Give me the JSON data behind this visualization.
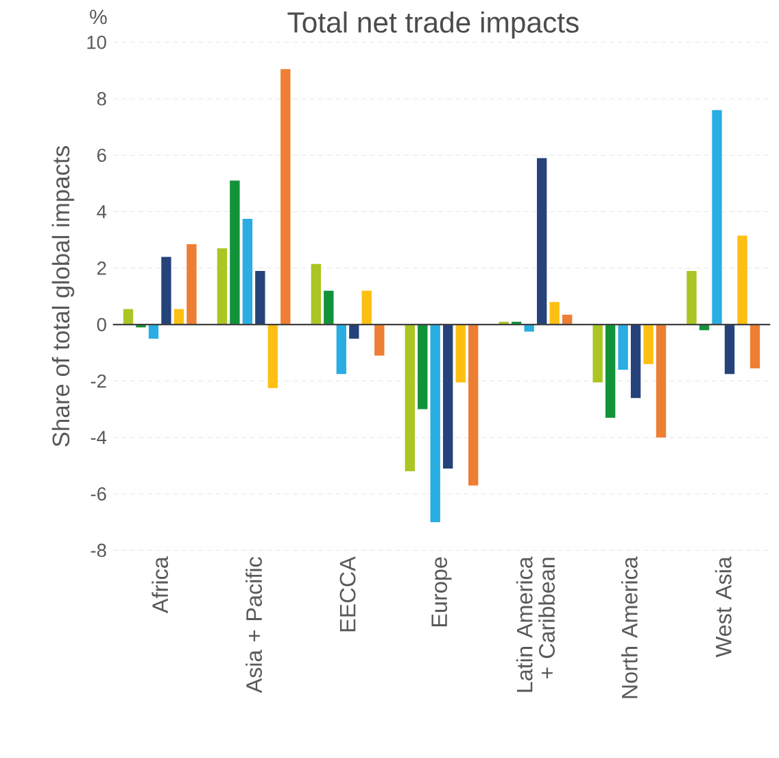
{
  "chart_data": {
    "type": "bar",
    "title": "Total net trade impacts",
    "ylabel": "Share of total global impacts",
    "annotations": [
      "%"
    ],
    "categories": [
      "Africa",
      "Asia + Pacific",
      "EECCA",
      "Europe",
      "Latin America + Caribbean",
      "North America",
      "West Asia"
    ],
    "series": [
      {
        "color": "#a9c622",
        "values": [
          0.55,
          2.7,
          2.15,
          -5.2,
          0.1,
          -2.05,
          1.9
        ]
      },
      {
        "color": "#129339",
        "values": [
          -0.1,
          5.1,
          1.2,
          -3.0,
          0.1,
          -3.3,
          -0.2
        ]
      },
      {
        "color": "#29ade3",
        "values": [
          -0.5,
          3.75,
          -1.75,
          -7.0,
          -0.25,
          -1.6,
          7.6
        ]
      },
      {
        "color": "#25427a",
        "values": [
          2.4,
          1.9,
          -0.5,
          -5.1,
          5.9,
          -2.6,
          -1.75
        ]
      },
      {
        "color": "#fdbf12",
        "values": [
          0.55,
          -2.25,
          1.2,
          -2.05,
          0.8,
          -1.4,
          3.15
        ]
      },
      {
        "color": "#ee7e33",
        "values": [
          2.85,
          9.05,
          -1.1,
          -5.7,
          0.35,
          -4.0,
          -1.55
        ]
      }
    ],
    "ylim": [
      -8,
      10
    ],
    "yticks": [
      -8,
      -6,
      -4,
      -2,
      0,
      2,
      4,
      6,
      8,
      10
    ],
    "grid": "y"
  }
}
